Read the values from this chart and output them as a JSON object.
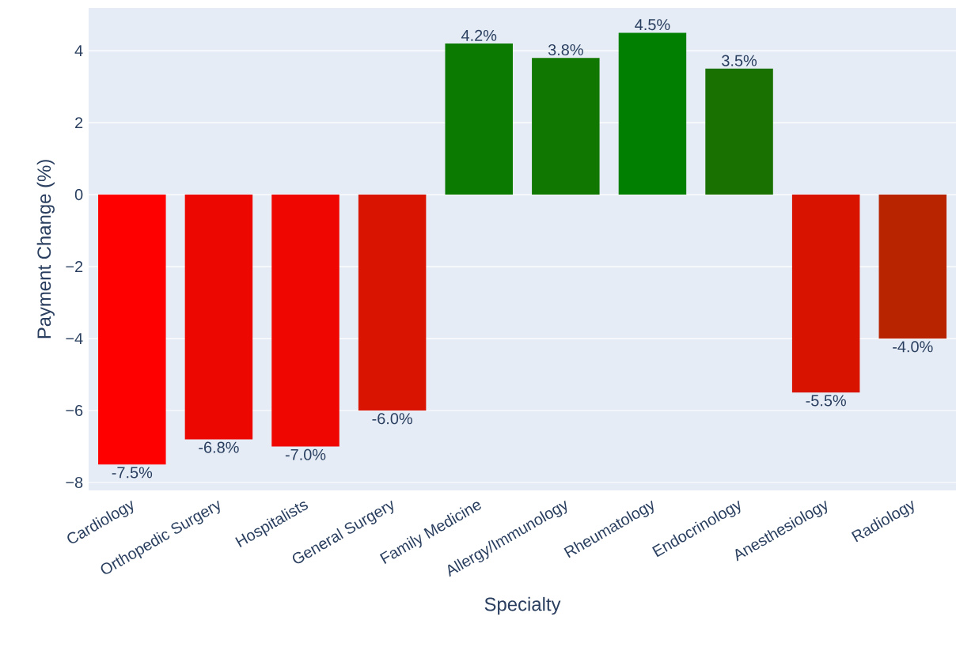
{
  "chart_data": {
    "type": "bar",
    "xlabel": "Specialty",
    "ylabel": "Payment Change (%)",
    "categories": [
      "Cardiology",
      "Orthopedic Surgery",
      "Hospitalists",
      "General Surgery",
      "Family Medicine",
      "Allergy/Immunology",
      "Rheumatology",
      "Endocrinology",
      "Anesthesiology",
      "Radiology"
    ],
    "values": [
      -7.5,
      -6.8,
      -7.0,
      -6.0,
      4.2,
      3.8,
      4.5,
      3.5,
      -5.5,
      -4.0
    ],
    "colors": [
      "#fe0000",
      "#ec0800",
      "#f00600",
      "#d91400",
      "#0a7a00",
      "#107700",
      "#007f00",
      "#187100",
      "#d81400",
      "#b82400"
    ],
    "value_labels": [
      "-7.5%",
      "-6.8%",
      "-7.0%",
      "-6.0%",
      "4.2%",
      "3.8%",
      "4.5%",
      "3.5%",
      "-5.5%",
      "-4.0%"
    ],
    "ylim": [
      -8.22,
      5.19
    ],
    "yticks": [
      {
        "value": -8,
        "label": "−8"
      },
      {
        "value": -6,
        "label": "−6"
      },
      {
        "value": -4,
        "label": "−4"
      },
      {
        "value": -2,
        "label": "−2"
      },
      0,
      2,
      4
    ],
    "grid": "y"
  }
}
